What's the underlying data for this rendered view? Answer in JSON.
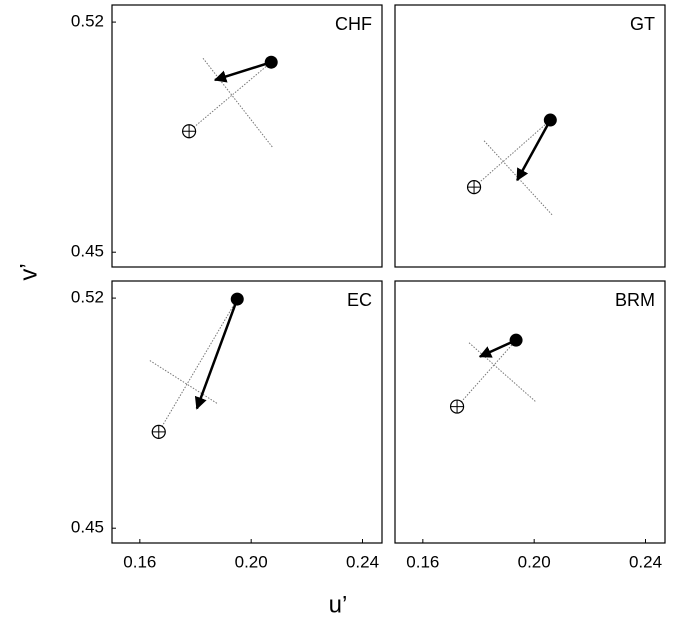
{
  "xlabel": "u’",
  "ylabel": "v’",
  "chart_data": [
    {
      "type": "scatter",
      "title": "CHF",
      "xlim": [
        0.15,
        0.247
      ],
      "ylim": [
        0.4455,
        0.5252
      ],
      "yticks": [
        0.45,
        0.52
      ],
      "start": {
        "x": 0.2072,
        "y": 0.5078
      },
      "end": {
        "x": 0.187,
        "y": 0.5024
      },
      "target": {
        "x": 0.1777,
        "y": 0.4868
      },
      "cross": {
        "x": [
          0.1827,
          0.2076
        ],
        "y": [
          0.509,
          0.482
        ]
      }
    },
    {
      "type": "scatter",
      "title": "GT",
      "xlim": [
        0.15,
        0.247
      ],
      "ylim": [
        0.4455,
        0.5252
      ],
      "start": {
        "x": 0.2058,
        "y": 0.4902
      },
      "end": {
        "x": 0.1939,
        "y": 0.4719
      },
      "target": {
        "x": 0.1784,
        "y": 0.4698
      },
      "cross": {
        "x": [
          0.182,
          0.2065
        ],
        "y": [
          0.4839,
          0.4613
        ]
      }
    },
    {
      "type": "scatter",
      "title": "EC",
      "xlim": [
        0.15,
        0.247
      ],
      "ylim": [
        0.4455,
        0.5252
      ],
      "yticks": [
        0.45,
        0.52
      ],
      "xticks": [
        0.16,
        {
          "value": 0.2,
          "label": "0.20"
        },
        0.24
      ],
      "start": {
        "x": 0.195,
        "y": 0.5197
      },
      "end": {
        "x": 0.1805,
        "y": 0.4864
      },
      "target": {
        "x": 0.1668,
        "y": 0.4793
      },
      "cross": {
        "x": [
          0.1636,
          0.1877
        ],
        "y": [
          0.501,
          0.488
        ]
      }
    },
    {
      "type": "scatter",
      "title": "BRM",
      "xlim": [
        0.15,
        0.247
      ],
      "ylim": [
        0.4455,
        0.5252
      ],
      "xticks": [
        0.16,
        {
          "value": 0.2,
          "label": "0.20"
        },
        0.24
      ],
      "start": {
        "x": 0.1935,
        "y": 0.5072
      },
      "end": {
        "x": 0.1805,
        "y": 0.5022
      },
      "target": {
        "x": 0.1723,
        "y": 0.487
      },
      "cross": {
        "x": [
          0.1766,
          0.2004
        ],
        "y": [
          0.5064,
          0.4886
        ]
      }
    }
  ]
}
